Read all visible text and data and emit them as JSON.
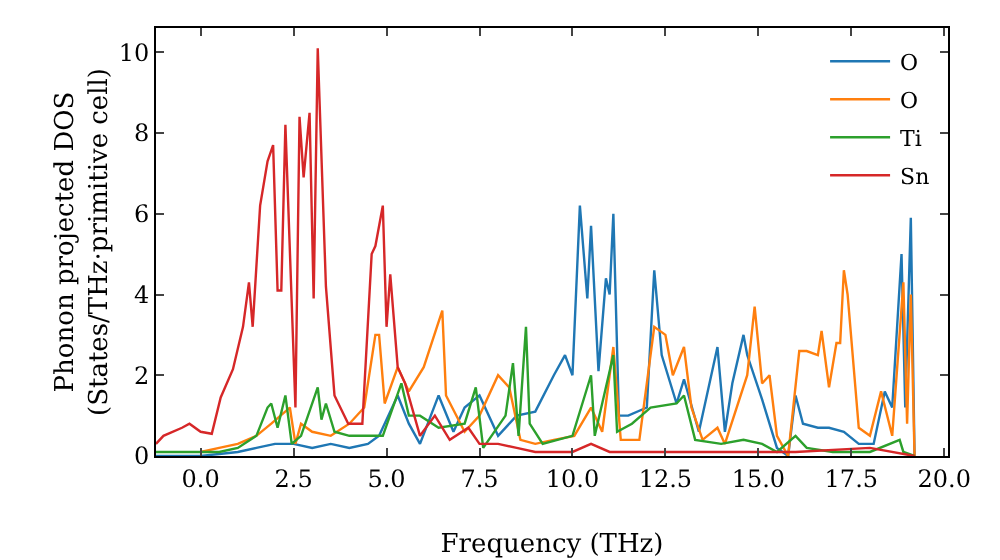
{
  "chart_data": {
    "type": "line",
    "xlabel": "Frequency (THz)",
    "ylabel": "Phonon projected DOS\n(States/THz·primitive cell)",
    "xlim": [
      -1.2,
      20.1
    ],
    "ylim": [
      0,
      10.6
    ],
    "xticks": [
      {
        "value": 0,
        "label": "0.0"
      },
      {
        "value": 2.5,
        "label": "2.5"
      },
      {
        "value": 5,
        "label": "5.0"
      },
      {
        "value": 7.5,
        "label": "7.5"
      },
      {
        "value": 10,
        "label": "10.0"
      },
      {
        "value": 12.5,
        "label": "12.5"
      },
      {
        "value": 15,
        "label": "15.0"
      },
      {
        "value": 17.5,
        "label": "17.5"
      },
      {
        "value": 20,
        "label": "20.0"
      }
    ],
    "yticks": [
      0,
      2,
      4,
      6,
      8,
      10
    ],
    "grid": false,
    "legend": "top right",
    "marker": "none",
    "line_style": "solid",
    "series": [
      {
        "name": "O",
        "color": "#1f77b4",
        "x": [
          -1.2,
          0,
          0.5,
          1,
          1.5,
          2,
          2.5,
          3,
          3.5,
          4,
          4.5,
          4.8,
          5.3,
          5.6,
          5.9,
          6.4,
          6.8,
          7.1,
          7.5,
          8,
          8.5,
          9,
          9.5,
          9.8,
          10,
          10.2,
          10.4,
          10.5,
          10.7,
          10.9,
          11,
          11.1,
          11.25,
          11.5,
          12,
          12.2,
          12.4,
          12.8,
          13,
          13.4,
          13.9,
          14.1,
          14.3,
          14.6,
          14.7,
          15.1,
          15.5,
          15.8,
          16,
          16.2,
          16.6,
          16.9,
          17.3,
          17.7,
          18.1,
          18.4,
          18.6,
          18.85,
          18.95,
          19.1,
          19.2
        ],
        "values": [
          0,
          0,
          0.05,
          0.1,
          0.2,
          0.3,
          0.3,
          0.2,
          0.3,
          0.2,
          0.3,
          0.5,
          1.5,
          0.8,
          0.3,
          1.5,
          0.6,
          1.2,
          1.5,
          0.5,
          1,
          1.1,
          2,
          2.5,
          2,
          6.2,
          3.9,
          5.7,
          2.1,
          4.4,
          4,
          6,
          1,
          1,
          1.2,
          4.6,
          2.5,
          1.3,
          1.9,
          0.6,
          2.7,
          0.6,
          1.8,
          3,
          2.5,
          1.4,
          0.2,
          0,
          1.5,
          0.8,
          0.7,
          0.7,
          0.6,
          0.3,
          0.3,
          1.6,
          1.2,
          5,
          1.2,
          5.9,
          0
        ]
      },
      {
        "name": "O",
        "color": "#ff7f0e",
        "x": [
          0,
          0.5,
          1,
          1.5,
          1.9,
          2.4,
          2.55,
          2.7,
          3,
          3.5,
          4,
          4.4,
          4.7,
          4.8,
          4.95,
          5.3,
          5.6,
          6,
          6.5,
          6.6,
          7.1,
          7.5,
          8,
          8.3,
          8.6,
          9,
          9.5,
          10.05,
          10.5,
          10.8,
          11.1,
          11.3,
          11.8,
          12.2,
          12.5,
          12.7,
          13,
          13.2,
          13.5,
          13.9,
          14.1,
          14.7,
          14.9,
          15.1,
          15.3,
          15.5,
          15.8,
          16.1,
          16.3,
          16.6,
          16.7,
          16.9,
          17.1,
          17.2,
          17.3,
          17.4,
          17.7,
          18,
          18.3,
          18.6,
          18.9,
          19,
          19.1,
          19.2
        ],
        "values": [
          0.1,
          0.2,
          0.3,
          0.5,
          0.8,
          1.2,
          0.3,
          0.8,
          0.6,
          0.5,
          0.8,
          1.2,
          3,
          3,
          1.3,
          2.2,
          1.6,
          2.2,
          3.6,
          1.5,
          0.6,
          1,
          2,
          1.7,
          0.4,
          0.3,
          0.4,
          0.5,
          1.2,
          0.6,
          2.7,
          0.4,
          0.4,
          3.2,
          3,
          2,
          2.7,
          1.2,
          0.4,
          0.7,
          0.3,
          2,
          3.7,
          1.8,
          2,
          0.5,
          0,
          2.6,
          2.6,
          2.5,
          3.1,
          1.7,
          2.8,
          2.8,
          4.6,
          4,
          0.7,
          0.5,
          1.6,
          0.5,
          4.3,
          0.8,
          4,
          0
        ]
      },
      {
        "name": "Ti",
        "color": "#2ca02c",
        "x": [
          -1.2,
          0,
          0.5,
          1,
          1.5,
          1.8,
          1.9,
          2.07,
          2.28,
          2.45,
          2.7,
          3.15,
          3.25,
          3.37,
          3.6,
          4,
          4.5,
          4.9,
          5.4,
          5.6,
          5.9,
          6.4,
          7.1,
          7.4,
          7.6,
          8.2,
          8.4,
          8.55,
          8.75,
          8.85,
          9.2,
          10,
          10.5,
          10.6,
          11.1,
          11.2,
          11.6,
          12.1,
          12.8,
          13,
          13.3,
          14,
          14.6,
          15.1,
          15.5,
          16,
          16.3,
          17,
          18,
          18.8,
          18.9,
          19.2
        ],
        "values": [
          0.1,
          0.1,
          0.1,
          0.2,
          0.5,
          1.2,
          1.3,
          0.7,
          1.5,
          0.3,
          0.5,
          1.7,
          0.9,
          1.3,
          0.6,
          0.5,
          0.5,
          0.5,
          1.8,
          1,
          1,
          0.7,
          0.8,
          1.7,
          0.2,
          1,
          2.3,
          0.5,
          3.2,
          0.8,
          0.3,
          0.5,
          2,
          0.5,
          2.5,
          0.6,
          0.8,
          1.2,
          1.3,
          1.5,
          0.4,
          0.3,
          0.4,
          0.3,
          0.1,
          0.5,
          0.2,
          0.1,
          0.1,
          0.4,
          0.1,
          0
        ]
      },
      {
        "name": "Sn",
        "color": "#d62728",
        "x": [
          -1.2,
          -1,
          -0.5,
          -0.3,
          0,
          0.3,
          0.54,
          0.87,
          1.14,
          1.3,
          1.4,
          1.6,
          1.8,
          1.95,
          2.07,
          2.17,
          2.28,
          2.55,
          2.66,
          2.77,
          2.93,
          3.04,
          3.15,
          3.37,
          3.6,
          3.97,
          4.35,
          4.6,
          4.7,
          4.9,
          5,
          5.1,
          5.3,
          5.5,
          5.9,
          6.3,
          6.7,
          7.2,
          7.5,
          8,
          8.5,
          9,
          10,
          10.5,
          11,
          12,
          14,
          16,
          18,
          19.2
        ],
        "values": [
          0.3,
          0.5,
          0.7,
          0.8,
          0.6,
          0.55,
          1.45,
          2.15,
          3.2,
          4.3,
          3.2,
          6.2,
          7.3,
          7.7,
          4.1,
          4.1,
          8.2,
          1.2,
          8.4,
          6.9,
          8.5,
          3.9,
          10.1,
          4.2,
          1.5,
          0.8,
          0.8,
          5,
          5.2,
          6.2,
          3.2,
          4.5,
          2.2,
          1.8,
          0.5,
          1,
          0.4,
          0.7,
          0.3,
          0.3,
          0.2,
          0.1,
          0.1,
          0.3,
          0.1,
          0.1,
          0.1,
          0.1,
          0.2,
          0
        ]
      }
    ]
  }
}
